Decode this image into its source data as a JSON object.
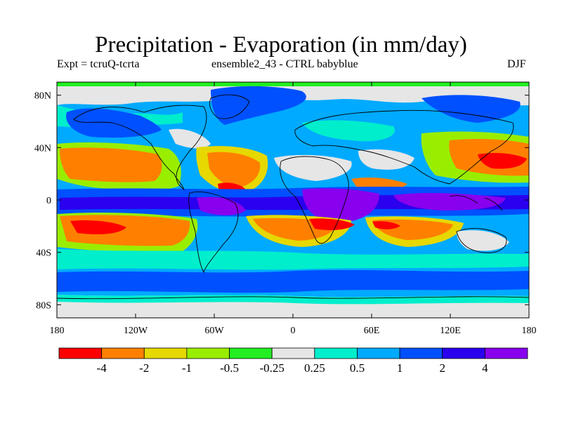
{
  "title": "Precipitation - Evaporation (in mm/day)",
  "subtitle_left": "Expt = tcruQ-tcrta",
  "subtitle_center": "ensemble2_43 - CTRL babyblue",
  "season": "DJF",
  "map": {
    "lat_ticks": [
      "80N",
      "40N",
      "0",
      "40S",
      "80S"
    ],
    "lon_ticks": [
      "180",
      "120W",
      "60W",
      "0",
      "60E",
      "120E",
      "180"
    ]
  },
  "colorbar": {
    "colors": [
      "#ff0000",
      "#ff8000",
      "#e6d800",
      "#99ee00",
      "#22ee22",
      "#e6e6e6",
      "#00eecc",
      "#00aaff",
      "#0050ff",
      "#2a00ee",
      "#8800ee"
    ],
    "labels": [
      "-4",
      "-2",
      "-1",
      "-0.5",
      "-0.25",
      "0.25",
      "0.5",
      "1",
      "2",
      "4"
    ]
  }
}
